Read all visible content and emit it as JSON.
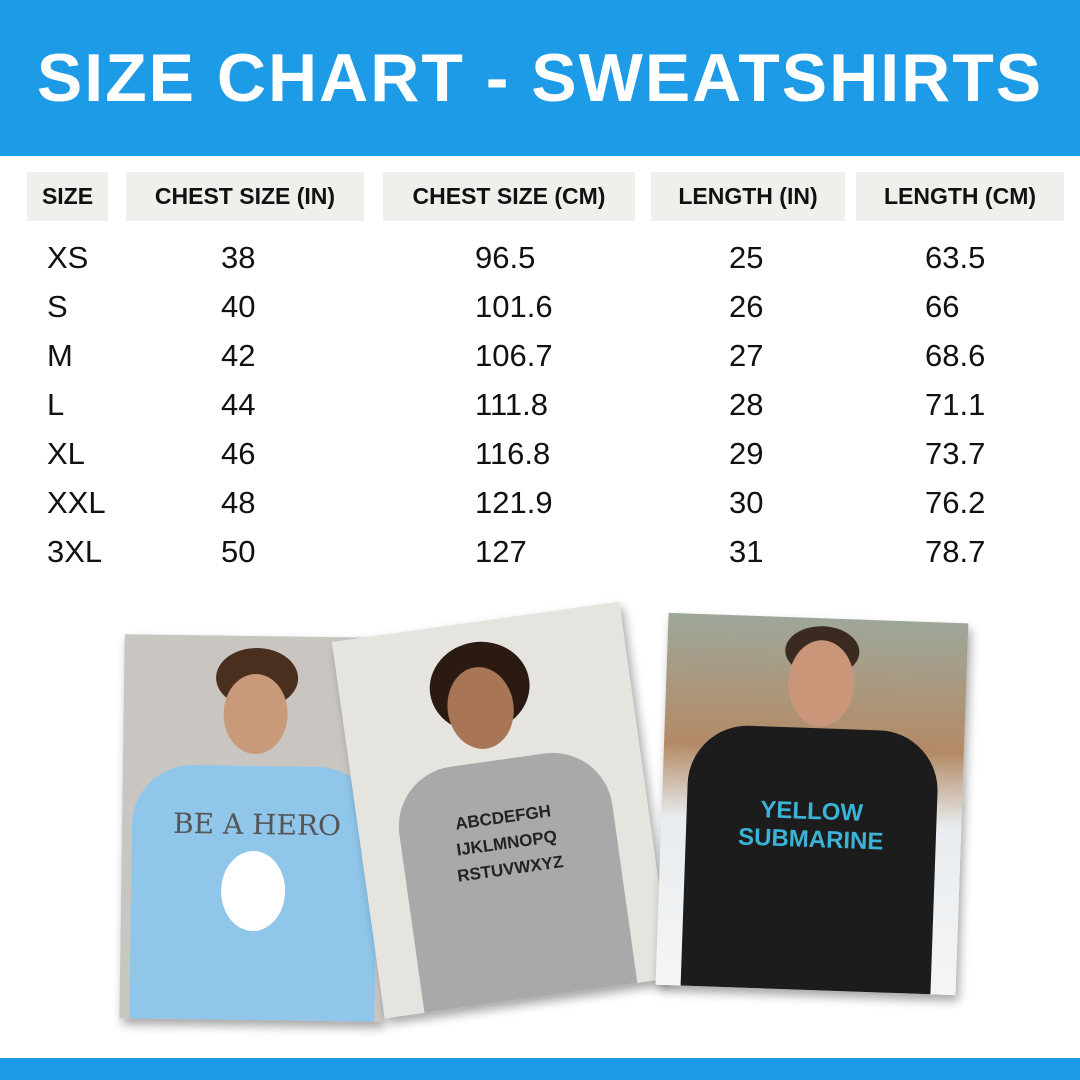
{
  "header": {
    "title": "SIZE CHART - SWEATSHIRTS"
  },
  "colors": {
    "brand_blue": "#1e9be6",
    "header_cell_bg": "#f0efeb"
  },
  "table": {
    "columns": [
      "SIZE",
      "CHEST SIZE (IN)",
      "CHEST SIZE (CM)",
      "LENGTH (IN)",
      "LENGTH (CM)"
    ],
    "rows": [
      [
        "XS",
        "38",
        "96.5",
        "25",
        "63.5"
      ],
      [
        "S",
        "40",
        "101.6",
        "26",
        "66"
      ],
      [
        "M",
        "42",
        "106.7",
        "27",
        "68.6"
      ],
      [
        "L",
        "44",
        "111.8",
        "28",
        "71.1"
      ],
      [
        "XL",
        "46",
        "116.8",
        "29",
        "73.7"
      ],
      [
        "XXL",
        "48",
        "121.9",
        "30",
        "76.2"
      ],
      [
        "3XL",
        "50",
        "127",
        "31",
        "78.7"
      ]
    ]
  },
  "photos": [
    {
      "shirt_color": "#8fc6ea",
      "design_text": "BE A HERO"
    },
    {
      "shirt_color": "#a9a9a9",
      "design_text": "ABCDEFGH IJKLMNOPQ RSTUVWXYZ"
    },
    {
      "shirt_color": "#1c1c1c",
      "design_text": "YELLOW SUBMARINE"
    }
  ]
}
